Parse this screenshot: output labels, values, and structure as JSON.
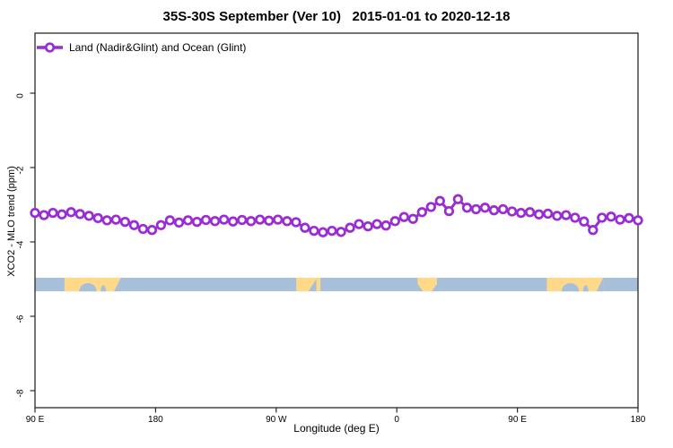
{
  "chart_data": {
    "type": "line",
    "title": "35S-30S September (Ver 10)   2015-01-01 to 2020-12-18",
    "xlabel": "Longitude (deg E)",
    "ylabel": "XCO2 - MLO trend (ppm)",
    "grid": false,
    "legend_position": "top-left-inside",
    "x_axis": {
      "range_deg": [
        90,
        540
      ],
      "ticks_deg": [
        90,
        180,
        270,
        360,
        450,
        540
      ],
      "tick_labels": [
        "90 E",
        "180",
        "90 W",
        "0",
        "90 E",
        "180"
      ]
    },
    "y_axis": {
      "range_ppm": [
        -8.46,
        1.61
      ],
      "ticks": [
        0,
        -2,
        -4,
        -6,
        -8
      ],
      "tick_labels": [
        "0",
        "-2",
        "-4",
        "-6",
        "-8"
      ]
    },
    "series": [
      {
        "name": "Land (Nadir&Glint) and Ocean (Glint)",
        "color": "#9a2cd4",
        "marker": "open-circle",
        "x_deg": [
          90.0,
          96.7,
          103.4,
          110.1,
          116.9,
          123.6,
          130.3,
          137.0,
          143.7,
          150.4,
          157.2,
          163.9,
          170.6,
          177.3,
          184.0,
          190.7,
          197.5,
          204.2,
          210.9,
          217.6,
          224.3,
          231.0,
          237.8,
          244.5,
          251.2,
          257.9,
          264.6,
          271.3,
          278.1,
          284.8,
          291.5,
          298.2,
          304.9,
          311.6,
          318.4,
          325.1,
          331.8,
          338.5,
          345.2,
          351.9,
          358.7,
          365.4,
          372.1,
          378.8,
          385.5,
          392.2,
          399.0,
          405.7,
          412.4,
          419.1,
          425.8,
          432.5,
          439.3,
          446.0,
          452.7,
          459.4,
          466.1,
          472.8,
          479.6,
          486.3,
          493.0,
          499.7,
          506.4,
          513.1,
          519.9,
          526.6,
          533.3,
          540.0
        ],
        "values_ppm": [
          -3.22,
          -3.28,
          -3.22,
          -3.26,
          -3.2,
          -3.25,
          -3.3,
          -3.36,
          -3.42,
          -3.4,
          -3.46,
          -3.55,
          -3.65,
          -3.68,
          -3.55,
          -3.42,
          -3.48,
          -3.42,
          -3.46,
          -3.41,
          -3.44,
          -3.4,
          -3.45,
          -3.41,
          -3.44,
          -3.4,
          -3.43,
          -3.4,
          -3.44,
          -3.47,
          -3.62,
          -3.7,
          -3.74,
          -3.7,
          -3.73,
          -3.62,
          -3.52,
          -3.58,
          -3.52,
          -3.56,
          -3.44,
          -3.33,
          -3.38,
          -3.2,
          -3.06,
          -2.9,
          -3.17,
          -2.85,
          -3.08,
          -3.12,
          -3.08,
          -3.15,
          -3.12,
          -3.18,
          -3.22,
          -3.2,
          -3.26,
          -3.24,
          -3.3,
          -3.28,
          -3.35,
          -3.45,
          -3.68,
          -3.35,
          -3.32,
          -3.4,
          -3.36,
          -3.42
        ]
      }
    ],
    "surface_band": {
      "description": "land-ocean strip along 35S-30S",
      "y_range_ppm": [
        -4.96,
        -5.33
      ],
      "ocean_color": "#a8bfda",
      "land_color": "#ffd98a",
      "land_segments_deg": [
        [
          112,
          154
        ],
        [
          285,
          303
        ],
        [
          375.5,
          390
        ],
        [
          472,
          514
        ]
      ],
      "coast_notches": [
        {
          "deg": [
            123,
            136
          ],
          "shape": "bump",
          "depth": 0.6
        },
        {
          "deg": [
            139,
            143
          ],
          "shape": "bump",
          "depth": 0.45
        },
        {
          "deg": [
            149,
            154
          ],
          "shape": "tri-right",
          "depth": 1
        },
        {
          "deg": [
            294,
            300
          ],
          "shape": "tri-right",
          "depth": 0.9
        },
        {
          "deg": [
            375.5,
            379.5
          ],
          "shape": "tri-left",
          "depth": 0.55
        },
        {
          "deg": [
            386,
            390
          ],
          "shape": "tri-right",
          "depth": 0.55
        },
        {
          "deg": [
            483,
            496
          ],
          "shape": "bump",
          "depth": 0.6
        },
        {
          "deg": [
            499,
            503
          ],
          "shape": "bump",
          "depth": 0.45
        },
        {
          "deg": [
            509,
            514
          ],
          "shape": "tri-right",
          "depth": 1
        }
      ]
    },
    "frame_color": "#2a2a2a"
  }
}
